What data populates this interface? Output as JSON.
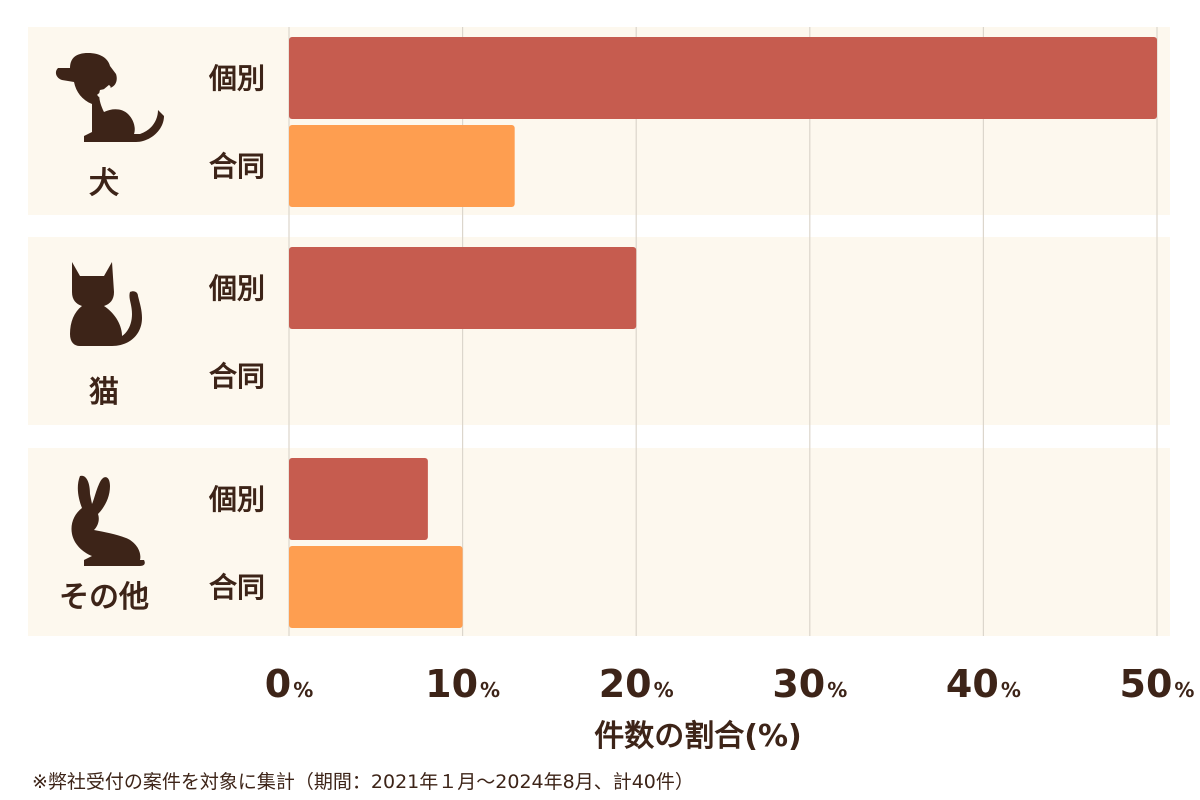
{
  "chart_data": {
    "type": "bar",
    "orientation": "horizontal",
    "xlabel": "件数の割合(%)",
    "xlim": [
      0,
      50
    ],
    "xticks": [
      {
        "value": 0,
        "num": "0",
        "unit": "%"
      },
      {
        "value": 10,
        "num": "10",
        "unit": "%"
      },
      {
        "value": 20,
        "num": "20",
        "unit": "%"
      },
      {
        "value": 30,
        "num": "30",
        "unit": "%"
      },
      {
        "value": 40,
        "num": "40",
        "unit": "%"
      },
      {
        "value": 50,
        "num": "50",
        "unit": "%"
      }
    ],
    "grid": true,
    "groups": [
      {
        "name": "犬",
        "icon": "dog-icon",
        "bars": [
          {
            "label": "個別",
            "value": 50,
            "color": "#c65c4f"
          },
          {
            "label": "合同",
            "value": 13,
            "color": "#fe9e50"
          }
        ]
      },
      {
        "name": "猫",
        "icon": "cat-icon",
        "bars": [
          {
            "label": "個別",
            "value": 20,
            "color": "#c65c4f"
          },
          {
            "label": "合同",
            "value": 0,
            "color": "#fe9e50"
          }
        ]
      },
      {
        "name": "その他",
        "icon": "rabbit-icon",
        "bars": [
          {
            "label": "個別",
            "value": 8,
            "color": "#c65c4f"
          },
          {
            "label": "合同",
            "value": 10,
            "color": "#fe9e50"
          }
        ]
      }
    ],
    "footnote": "※弊社受付の案件を対象に集計（期間：2021年１月〜2024年8月、計40件）"
  },
  "colors": {
    "panel_bg": "#fdf8ee",
    "grid": "#dcd6cc",
    "text": "#3d2418",
    "icon": "#3d2418"
  }
}
